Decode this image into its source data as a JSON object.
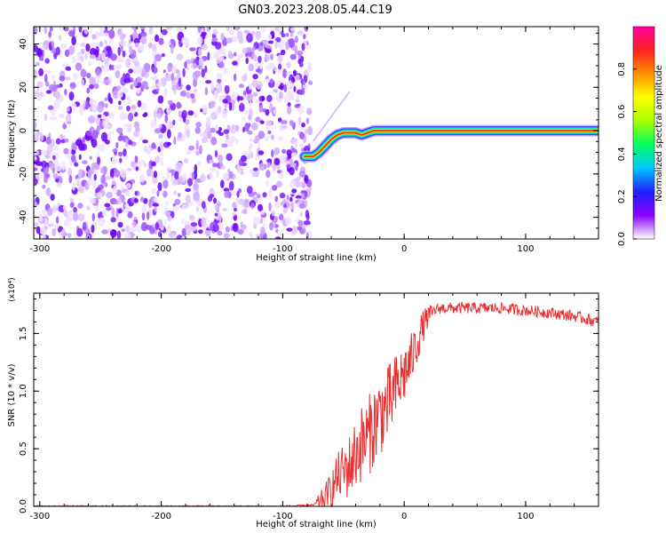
{
  "title": "GN03.2023.208.05.44.C19",
  "chart_data": [
    {
      "type": "heatmap",
      "xlabel": "Height of straight line (km)",
      "ylabel": "Frequency (Hz)",
      "xlim": [
        -305,
        160
      ],
      "ylim": [
        -50,
        48
      ],
      "x_ticks": [
        "-300",
        "-200",
        "-100",
        "0",
        "100"
      ],
      "x_tick_values": [
        -300,
        -200,
        -100,
        0,
        100
      ],
      "y_ticks": [
        "-40",
        "-20",
        "0",
        "20",
        "40"
      ],
      "y_tick_values": [
        -40,
        -20,
        0,
        20,
        40
      ],
      "noise_region_x": [
        -305,
        -80
      ],
      "signal_trace": {
        "x": [
          -82,
          -75,
          -70,
          -65,
          -60,
          -55,
          -50,
          -45,
          -40,
          -35,
          -30,
          -25,
          -20,
          -15,
          -10,
          -5,
          0,
          10,
          20,
          40,
          60,
          80,
          100,
          130,
          160
        ],
        "y": [
          -12,
          -12,
          -10,
          -7,
          -4,
          -2,
          -1,
          -1,
          -1,
          -2,
          -1,
          0,
          0,
          0,
          0,
          0,
          0,
          0,
          0,
          0,
          0,
          0,
          0,
          0,
          0
        ]
      },
      "colorbar": {
        "label": "Normalized spectral amplitude",
        "ticks": [
          "0.0",
          "0.2",
          "0.4",
          "0.6",
          "0.8"
        ],
        "tick_values": [
          0,
          0.2,
          0.4,
          0.6,
          0.8
        ],
        "range": [
          0,
          1
        ],
        "colors": [
          "#ffffff",
          "#8a00ff",
          "#2020ff",
          "#00c8ff",
          "#00ff60",
          "#a8ff00",
          "#ffff00",
          "#ff9000",
          "#ff2020",
          "#ff00a0"
        ]
      }
    },
    {
      "type": "line",
      "xlabel": "Height of straight line (km)",
      "ylabel": "SNR (10 * v/v)",
      "y_multiplier": "(x10⁴)",
      "xlim": [
        -305,
        160
      ],
      "ylim": [
        0,
        1.85
      ],
      "x_ticks": [
        "-300",
        "-200",
        "-100",
        "0",
        "100"
      ],
      "x_tick_values": [
        -300,
        -200,
        -100,
        0,
        100
      ],
      "y_ticks": [
        "0.0",
        "0.5",
        "1.0",
        "1.5"
      ],
      "y_tick_values": [
        0,
        0.5,
        1.0,
        1.5
      ],
      "color": "#e83030",
      "series": [
        {
          "x": [
            -305,
            -200,
            -100,
            -75,
            -65,
            -60,
            -55,
            -50,
            -45,
            -40,
            -35,
            -30,
            -25,
            -20,
            -15,
            -10,
            -5,
            0,
            5,
            10,
            15,
            20,
            25,
            30,
            40,
            50,
            60,
            80,
            100,
            120,
            140,
            160
          ],
          "values": [
            0.0,
            0.0,
            0.0,
            0.01,
            0.08,
            0.15,
            0.25,
            0.3,
            0.35,
            0.45,
            0.55,
            0.6,
            0.7,
            0.8,
            0.85,
            0.95,
            1.05,
            1.15,
            1.25,
            1.4,
            1.55,
            1.65,
            1.7,
            1.72,
            1.72,
            1.72,
            1.72,
            1.72,
            1.7,
            1.68,
            1.65,
            1.6
          ]
        }
      ]
    }
  ]
}
